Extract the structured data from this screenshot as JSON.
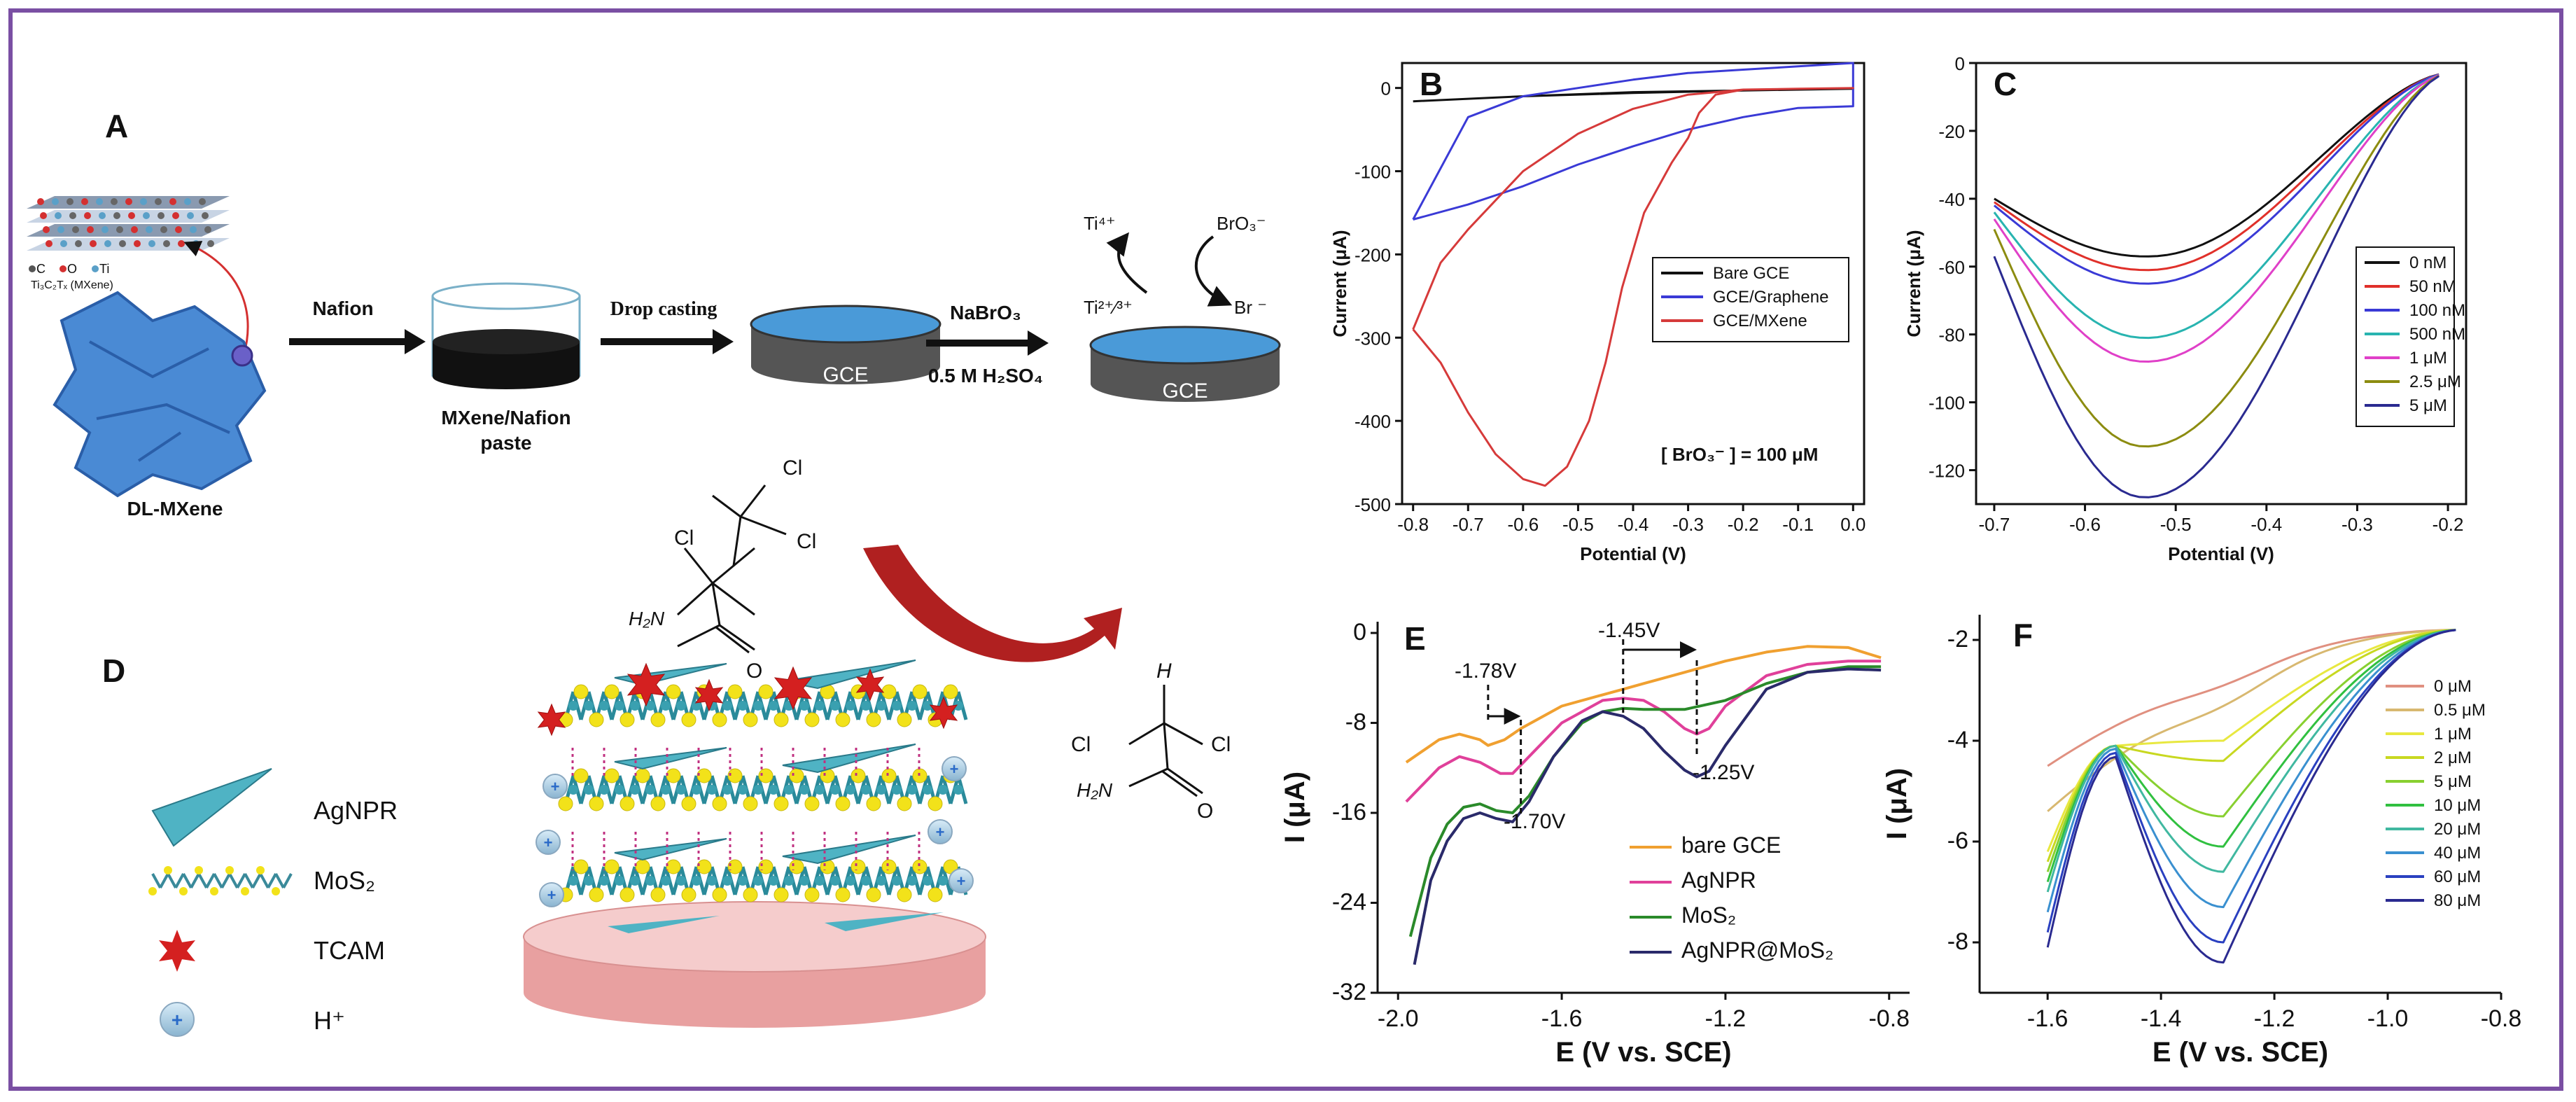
{
  "panelA": {
    "letter": "A",
    "legend_c": "C",
    "legend_o": "O",
    "legend_ti": "Ti",
    "mxene_formula": "Ti₃C₂Tₓ (MXene)",
    "dl_mxene": "DL-MXene",
    "nafion": "Nafion",
    "paste_line1": "MXene/Nafion",
    "paste_line2": "paste",
    "drop_casting": "Drop casting",
    "gce": "GCE",
    "nabro3": "NaBrO₃",
    "h2so4": "0.5 M H₂SO₄",
    "ti4": "Ti⁴⁺",
    "ti23": "Ti²⁺⁄³⁺",
    "bro3": "BrO₃⁻",
    "br": "Br ⁻"
  },
  "panelD": {
    "letter": "D",
    "legend_agnpr": "AgNPR",
    "legend_mos2": "MoS₂",
    "legend_tcam": "TCAM",
    "legend_h": "H⁺",
    "mol1_cl1": "Cl",
    "mol1_cl2": "Cl",
    "mol1_cl3": "Cl",
    "mol1_nh2": "H₂N",
    "mol1_o": "O",
    "mol2_h": "H",
    "mol2_cl1": "Cl",
    "mol2_cl2": "Cl",
    "mol2_nh2": "H₂N",
    "mol2_o": "O",
    "colors": {
      "agnpr": "#4fb3c4",
      "tcam": "#d42020",
      "mos2_s": "#f2e21a",
      "electrode": "#f2c4c4"
    }
  },
  "chart_data": [
    {
      "panel": "B",
      "type": "line",
      "xlabel": "Potential (V)",
      "ylabel": "Current (μA)",
      "xlim": [
        -0.82,
        0.02
      ],
      "ylim": [
        -500,
        30
      ],
      "xticks": [
        -0.8,
        -0.7,
        -0.6,
        -0.5,
        -0.4,
        -0.3,
        -0.2,
        -0.1,
        0.0
      ],
      "yticks": [
        0,
        -100,
        -200,
        -300,
        -400,
        -500
      ],
      "legend_position": "middle-right",
      "annotation": "[ BrO₃⁻ ] = 100 μM",
      "series": [
        {
          "name": "Bare GCE",
          "color": "#111111",
          "x": [
            -0.8,
            -0.6,
            -0.4,
            -0.2,
            0.0,
            -0.2,
            -0.4,
            -0.6,
            -0.8
          ],
          "y": [
            -16,
            -10,
            -6,
            -3,
            -1,
            -3,
            -5,
            -10,
            -16
          ]
        },
        {
          "name": "GCE/Graphene",
          "color": "#3a3ad6",
          "x": [
            -0.8,
            -0.7,
            -0.6,
            -0.5,
            -0.4,
            -0.3,
            -0.2,
            -0.1,
            0.0,
            0.0,
            -0.1,
            -0.2,
            -0.3,
            -0.4,
            -0.5,
            -0.6,
            -0.7,
            -0.8
          ],
          "y": [
            -158,
            -140,
            -118,
            -92,
            -70,
            -50,
            -35,
            -24,
            -22,
            30,
            26,
            22,
            18,
            10,
            0,
            -10,
            -35,
            -158
          ]
        },
        {
          "name": "GCE/MXene",
          "color": "#d63a3a",
          "x": [
            -0.8,
            -0.75,
            -0.7,
            -0.65,
            -0.6,
            -0.56,
            -0.52,
            -0.48,
            -0.45,
            -0.42,
            -0.38,
            -0.33,
            -0.3,
            -0.28,
            -0.25,
            -0.2,
            -0.1,
            0.0,
            -0.1,
            -0.2,
            -0.3,
            -0.4,
            -0.5,
            -0.6,
            -0.7,
            -0.75,
            -0.8
          ],
          "y": [
            -290,
            -330,
            -390,
            -440,
            -470,
            -478,
            -455,
            -400,
            -330,
            -240,
            -150,
            -90,
            -60,
            -30,
            -8,
            -2,
            -1,
            0,
            -1,
            -2,
            -8,
            -25,
            -55,
            -100,
            -170,
            -210,
            -290
          ]
        }
      ]
    },
    {
      "panel": "C",
      "type": "line",
      "xlabel": "Potential (V)",
      "ylabel": "Current (μA)",
      "xlim": [
        -0.72,
        -0.18
      ],
      "ylim": [
        -130,
        0
      ],
      "xticks": [
        -0.7,
        -0.6,
        -0.5,
        -0.4,
        -0.3,
        -0.2
      ],
      "yticks": [
        0,
        -20,
        -40,
        -60,
        -80,
        -100,
        -120
      ],
      "legend_position": "middle-right",
      "series": [
        {
          "name": "0 nM",
          "color": "#111111",
          "peak": -57,
          "start": -40
        },
        {
          "name": "50 nM",
          "color": "#e0302a",
          "peak": -61,
          "start": -41
        },
        {
          "name": "100 nM",
          "color": "#3a3ad6",
          "peak": -65,
          "start": -42
        },
        {
          "name": "500 nM",
          "color": "#28b4b0",
          "peak": -81,
          "start": -44
        },
        {
          "name": "1 μM",
          "color": "#e040c8",
          "peak": -88,
          "start": -46
        },
        {
          "name": "2.5 μM",
          "color": "#8c8c10",
          "peak": -113,
          "start": -49
        },
        {
          "name": "5 μM",
          "color": "#2a2a90",
          "peak": -128,
          "start": -57
        }
      ]
    },
    {
      "panel": "E",
      "type": "line",
      "xlabel": "E (V vs. SCE)",
      "ylabel": "I (μA)",
      "xlim": [
        -2.05,
        -0.75
      ],
      "ylim": [
        -32,
        1
      ],
      "xticks": [
        -2.0,
        -1.6,
        -1.2,
        -0.8
      ],
      "yticks": [
        0,
        -8,
        -16,
        -24,
        -32
      ],
      "legend_position": "bottom-right",
      "annotations": [
        "-1.78V",
        "-1.45V",
        "-1.25V",
        "-1.70V"
      ],
      "series": [
        {
          "name": "bare GCE",
          "color": "#f0a030",
          "x": [
            -1.98,
            -1.9,
            -1.85,
            -1.8,
            -1.78,
            -1.74,
            -1.7,
            -1.6,
            -1.5,
            -1.45,
            -1.4,
            -1.3,
            -1.2,
            -1.1,
            -1.0,
            -0.9,
            -0.82
          ],
          "y": [
            -11.5,
            -9.5,
            -9,
            -9.5,
            -10,
            -9.5,
            -8.5,
            -6.5,
            -5.5,
            -5,
            -4.5,
            -3.5,
            -2.5,
            -1.7,
            -1.2,
            -1.3,
            -2.2
          ]
        },
        {
          "name": "AgNPR",
          "color": "#e0409a",
          "x": [
            -1.98,
            -1.9,
            -1.85,
            -1.8,
            -1.75,
            -1.72,
            -1.68,
            -1.6,
            -1.5,
            -1.45,
            -1.4,
            -1.35,
            -1.3,
            -1.27,
            -1.24,
            -1.2,
            -1.1,
            -1.0,
            -0.9,
            -0.82
          ],
          "y": [
            -15,
            -12,
            -11,
            -11.5,
            -12.5,
            -12.5,
            -11,
            -8,
            -6,
            -5.8,
            -6,
            -7,
            -8.5,
            -9,
            -8.5,
            -6.5,
            -3.8,
            -2.8,
            -2.5,
            -2.5
          ]
        },
        {
          "name": "MoS₂",
          "color": "#2a8a2a",
          "x": [
            -1.97,
            -1.92,
            -1.88,
            -1.84,
            -1.8,
            -1.76,
            -1.72,
            -1.68,
            -1.62,
            -1.55,
            -1.5,
            -1.45,
            -1.4,
            -1.3,
            -1.2,
            -1.1,
            -1.0,
            -0.9,
            -0.82
          ],
          "y": [
            -27,
            -20,
            -17,
            -15.5,
            -15.2,
            -15.8,
            -16,
            -14.5,
            -11,
            -8,
            -7,
            -6.7,
            -6.8,
            -6.8,
            -6,
            -4.5,
            -3.5,
            -3,
            -3
          ]
        },
        {
          "name": "AgNPR@MoS₂",
          "color": "#2a2a6a",
          "x": [
            -1.96,
            -1.92,
            -1.88,
            -1.84,
            -1.8,
            -1.76,
            -1.72,
            -1.68,
            -1.62,
            -1.55,
            -1.5,
            -1.45,
            -1.4,
            -1.35,
            -1.3,
            -1.27,
            -1.24,
            -1.2,
            -1.1,
            -1.0,
            -0.9,
            -0.82
          ],
          "y": [
            -29.5,
            -22,
            -18.5,
            -16.5,
            -16,
            -16.5,
            -16.8,
            -15,
            -11,
            -7.8,
            -7,
            -7.4,
            -8.5,
            -10.5,
            -12.2,
            -12.8,
            -12.3,
            -10,
            -5,
            -3.5,
            -3.2,
            -3.3
          ]
        }
      ]
    },
    {
      "panel": "F",
      "type": "line",
      "xlabel": "E (V vs. SCE)",
      "ylabel": "I (μA)",
      "xlim": [
        -1.72,
        -0.8
      ],
      "ylim": [
        -9,
        -1.5
      ],
      "xticks": [
        -1.6,
        -1.4,
        -1.2,
        -1.0,
        -0.8
      ],
      "yticks": [
        -2,
        -4,
        -6,
        -8
      ],
      "legend_position": "middle-right",
      "series": [
        {
          "name": "0 μM",
          "color": "#e09080",
          "peak": -3.0,
          "start": -4.5
        },
        {
          "name": "0.5 μM",
          "color": "#d8b870",
          "peak": -3.5,
          "start": -5.4
        },
        {
          "name": "1 μM",
          "color": "#e8e840",
          "peak": -4.0,
          "start": -6.2
        },
        {
          "name": "2 μM",
          "color": "#c8d820",
          "peak": -4.4,
          "start": -6.4
        },
        {
          "name": "5 μM",
          "color": "#88d030",
          "peak": -5.5,
          "start": -6.6
        },
        {
          "name": "10 μM",
          "color": "#30c040",
          "peak": -6.1,
          "start": -6.8
        },
        {
          "name": "20 μM",
          "color": "#40b8a0",
          "peak": -6.6,
          "start": -7.0
        },
        {
          "name": "40 μM",
          "color": "#3a90d0",
          "peak": -7.3,
          "start": -7.4
        },
        {
          "name": "60 μM",
          "color": "#2a40c0",
          "peak": -8.0,
          "start": -7.8
        },
        {
          "name": "80 μM",
          "color": "#2a2a90",
          "peak": -8.4,
          "start": -8.1
        }
      ]
    }
  ]
}
